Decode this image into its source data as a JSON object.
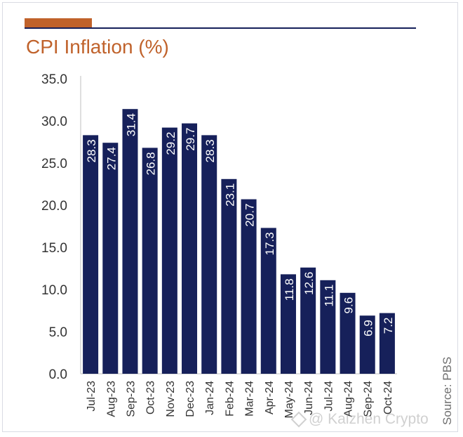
{
  "title": "CPI Inflation (%)",
  "source": "Source: PBS",
  "watermark": "@ Kaizhen Crypto",
  "colors": {
    "accent": "#c0622b",
    "bar": "#16205a",
    "rule": "#16205a",
    "bar_label": "#ffffff",
    "axis_text": "#333333"
  },
  "chart_data": {
    "type": "bar",
    "title": "CPI Inflation (%)",
    "xlabel": "",
    "ylabel": "",
    "ylim": [
      0,
      35
    ],
    "yticks": [
      "0.0",
      "5.0",
      "10.0",
      "15.0",
      "20.0",
      "25.0",
      "30.0",
      "35.0"
    ],
    "grid": false,
    "categories": [
      "Jul-23",
      "Aug-23",
      "Sep-23",
      "Oct-23",
      "Nov-23",
      "Dec-23",
      "Jan-24",
      "Feb-24",
      "Mar-24",
      "Apr-24",
      "May-24",
      "Jun-24",
      "Jul-24",
      "Aug-24",
      "Sep-24",
      "Oct-24"
    ],
    "values": [
      28.3,
      27.4,
      31.4,
      26.8,
      29.2,
      29.7,
      28.3,
      23.1,
      20.7,
      17.3,
      11.8,
      12.6,
      11.1,
      9.6,
      6.9,
      7.2
    ],
    "data_labels": [
      "28.3",
      "27.4",
      "31.4",
      "26.8",
      "29.2",
      "29.7",
      "28.3",
      "23.1",
      "20.7",
      "17.3",
      "11.8",
      "12.6",
      "11.1",
      "9.6",
      "6.9",
      "7.2"
    ]
  }
}
